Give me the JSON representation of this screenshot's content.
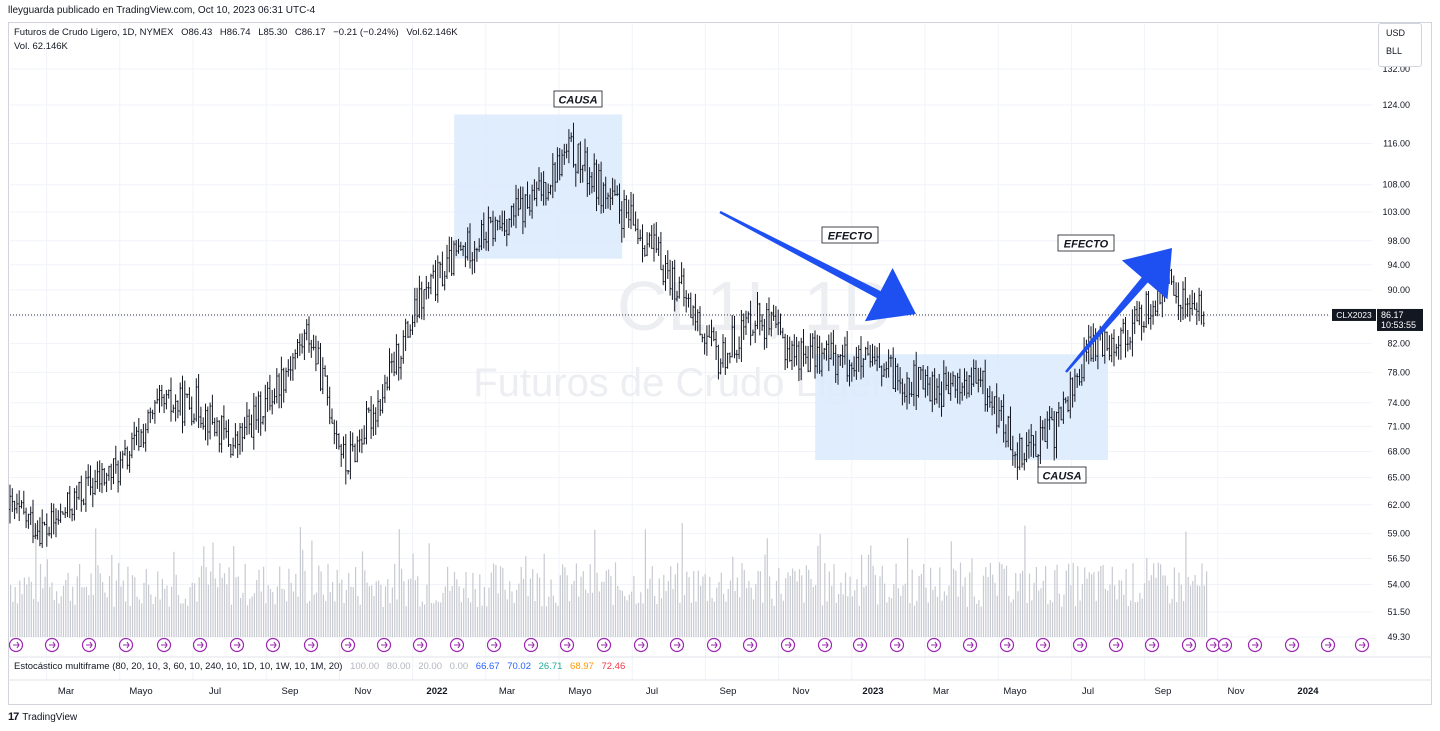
{
  "publisher_line": "lleyguarda publicado en TradingView.com, Oct 10, 2023 06:31 UTC-4",
  "header": {
    "symbol_desc": "Futuros de Crudo Ligero, 1D, NYMEX",
    "open": "O86.43",
    "high": "H86.74",
    "low": "L85.30",
    "close": "C86.17",
    "change": "−0.21 (−0.24%)",
    "vol": "Vol.62.146K",
    "vol_line": "Vol.  62.146K"
  },
  "currency_box": {
    "currency": "USD",
    "unit": "BLL"
  },
  "watermark": {
    "symbol": "CL1!, 1D",
    "name": "Futuros de Crudo Ligero"
  },
  "price_label": {
    "symbol": "CLX2023",
    "price": "86.17",
    "countdown": "10:53:55"
  },
  "stochastic": {
    "label": "Estocástico multiframe (80, 20, 10, 3, 60, 10, 240, 10, 1D, 10, 1W, 10, 1M, 20)",
    "values": [
      {
        "v": "100.00",
        "color": "#b2b5be"
      },
      {
        "v": "80.00",
        "color": "#b2b5be"
      },
      {
        "v": "20.00",
        "color": "#b2b5be"
      },
      {
        "v": "0.00",
        "color": "#b2b5be"
      },
      {
        "v": "66.67",
        "color": "#2962ff"
      },
      {
        "v": "70.02",
        "color": "#2962ff"
      },
      {
        "v": "26.71",
        "color": "#22ab94"
      },
      {
        "v": "68.97",
        "color": "#ff9800"
      },
      {
        "v": "72.46",
        "color": "#f23645"
      }
    ]
  },
  "annotations": [
    {
      "text": "CAUSA"
    },
    {
      "text": "EFECTO"
    },
    {
      "text": "EFECTO"
    },
    {
      "text": "CAUSA"
    }
  ],
  "footer": {
    "logo": "17",
    "brand": "TradingView"
  },
  "colors": {
    "candle": "#131722",
    "volume": "#c8cad1",
    "highlight": "#dbeafd",
    "arrow": "#1e4ff0",
    "grid": "#f0f3fa",
    "icon": "#9c27b0"
  },
  "chart_data": {
    "type": "candlestick",
    "title": "Futuros de Crudo Ligero, 1D, NYMEX",
    "y_scale": "log",
    "ylim": [
      49.3,
      132.0
    ],
    "y_ticks": [
      "132.00",
      "124.00",
      "116.00",
      "108.00",
      "103.00",
      "98.00",
      "94.00",
      "90.00",
      "86.00",
      "82.00",
      "78.00",
      "74.00",
      "71.00",
      "68.00",
      "65.00",
      "62.00",
      "59.00",
      "56.50",
      "54.00",
      "51.50",
      "49.30"
    ],
    "x_ticks": [
      "Mar",
      "Mayo",
      "Jul",
      "Sep",
      "Nov",
      "2022",
      "Mar",
      "Mayo",
      "Jul",
      "Sep",
      "Nov",
      "2023",
      "Mar",
      "Mayo",
      "Jul",
      "Sep",
      "Nov",
      "2024"
    ],
    "approx_monthly_close": [
      {
        "month": "2021-02",
        "close": 61.5
      },
      {
        "month": "2021-03",
        "close": 59.2
      },
      {
        "month": "2021-04",
        "close": 63.6
      },
      {
        "month": "2021-05",
        "close": 66.3
      },
      {
        "month": "2021-06",
        "close": 73.5
      },
      {
        "month": "2021-07",
        "close": 73.9
      },
      {
        "month": "2021-08",
        "close": 68.5
      },
      {
        "month": "2021-09",
        "close": 75.0
      },
      {
        "month": "2021-10",
        "close": 83.6
      },
      {
        "month": "2021-11",
        "close": 66.2
      },
      {
        "month": "2021-12",
        "close": 75.2
      },
      {
        "month": "2022-01",
        "close": 88.2
      },
      {
        "month": "2022-02",
        "close": 95.7
      },
      {
        "month": "2022-03",
        "close": 100.3
      },
      {
        "month": "2022-04",
        "close": 104.7
      },
      {
        "month": "2022-05",
        "close": 114.7
      },
      {
        "month": "2022-06",
        "close": 105.8
      },
      {
        "month": "2022-07",
        "close": 98.6
      },
      {
        "month": "2022-08",
        "close": 89.6
      },
      {
        "month": "2022-09",
        "close": 79.5
      },
      {
        "month": "2022-10",
        "close": 86.5
      },
      {
        "month": "2022-11",
        "close": 80.6
      },
      {
        "month": "2022-12",
        "close": 80.3
      },
      {
        "month": "2023-01",
        "close": 78.9
      },
      {
        "month": "2023-02",
        "close": 77.1
      },
      {
        "month": "2023-03",
        "close": 75.7
      },
      {
        "month": "2023-04",
        "close": 76.8
      },
      {
        "month": "2023-05",
        "close": 68.1
      },
      {
        "month": "2023-06",
        "close": 70.6
      },
      {
        "month": "2023-07",
        "close": 81.8
      },
      {
        "month": "2023-08",
        "close": 83.6
      },
      {
        "month": "2023-09",
        "close": 90.8
      },
      {
        "month": "2023-10",
        "close": 86.17
      }
    ],
    "last_price": 86.17,
    "regions": [
      {
        "label": "CAUSA",
        "x_from": "2022-02",
        "x_to": "2022-07",
        "y_from": 95,
        "y_to": 122
      },
      {
        "label": "CAUSA",
        "x_from": "2022-12",
        "x_to": "2023-08",
        "y_from": 67,
        "y_to": 80.5
      }
    ],
    "arrows": [
      {
        "label": "EFECTO",
        "from": "2022-07",
        "to": "2022-12",
        "direction": "down"
      },
      {
        "label": "EFECTO",
        "from": "2023-07",
        "to": "2023-09",
        "direction": "up"
      }
    ],
    "volume_ylim_note": "volume histogram shown in lower pane"
  }
}
